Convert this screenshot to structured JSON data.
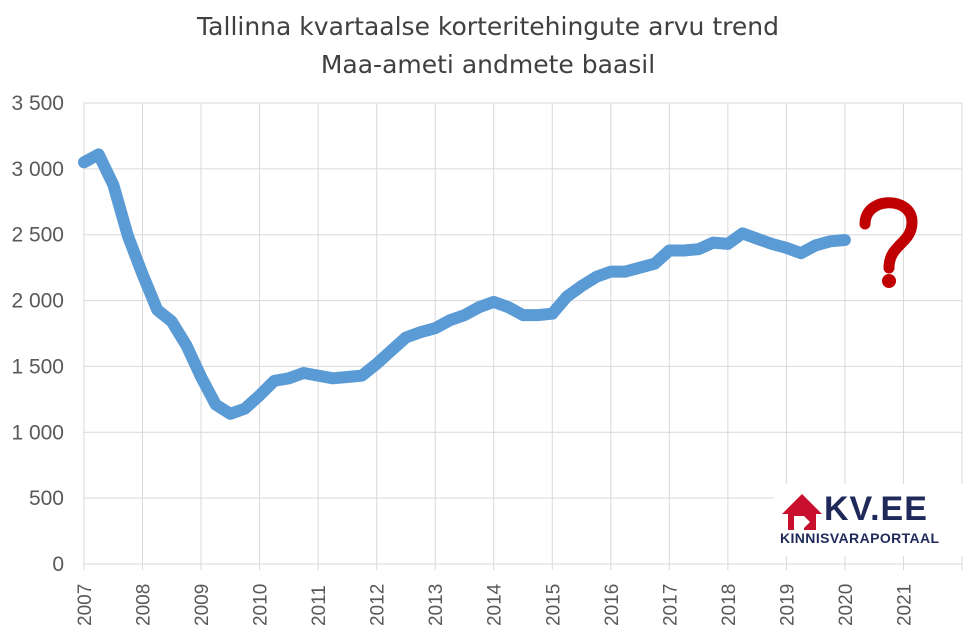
{
  "title": {
    "line1": "Tallinna kvartaalse korteritehingute arvu trend",
    "line2": "Maa-ameti andmete baasil"
  },
  "logo": {
    "name": "KV.EE",
    "subtitle": "KINNISVARAPORTAAL",
    "color": "#c8102e",
    "text_color": "#1f2a5a"
  },
  "annotation": {
    "symbol": "?",
    "color": "#c00000"
  },
  "colors": {
    "series": "#5b9bd5",
    "grid": "#d9d9d9",
    "axis": "#595959"
  },
  "chart_data": {
    "type": "line",
    "title": "Tallinna kvartaalse korteritehingute arvu trend",
    "subtitle": "Maa-ameti andmete baasil",
    "xlabel": "",
    "ylabel": "",
    "xlim": [
      2007,
      2022
    ],
    "ylim": [
      0,
      3500
    ],
    "yticks": [
      0,
      500,
      1000,
      1500,
      2000,
      2500,
      3000,
      3500
    ],
    "ytick_labels": [
      "0",
      "500",
      "1 000",
      "1 500",
      "2 000",
      "2 500",
      "3 000",
      "3 500"
    ],
    "xtick_labels": [
      "2007",
      "2008",
      "2009",
      "2010",
      "2011",
      "2012",
      "2013",
      "2014",
      "2015",
      "2016",
      "2017",
      "2018",
      "2019",
      "2020",
      "2021"
    ],
    "grid": true,
    "legend": "none",
    "series": [
      {
        "x": [
          2007.0,
          2007.25,
          2007.5,
          2007.75,
          2008.0,
          2008.25,
          2008.5,
          2008.75,
          2009.0,
          2009.25,
          2009.5,
          2009.75,
          2010.0,
          2010.25,
          2010.5,
          2010.75,
          2011.0,
          2011.25,
          2011.5,
          2011.75,
          2012.0,
          2012.25,
          2012.5,
          2012.75,
          2013.0,
          2013.25,
          2013.5,
          2013.75,
          2014.0,
          2014.25,
          2014.5,
          2014.75,
          2015.0,
          2015.25,
          2015.5,
          2015.75,
          2016.0,
          2016.25,
          2016.5,
          2016.75,
          2017.0,
          2017.25,
          2017.5,
          2017.75,
          2018.0,
          2018.25,
          2018.5,
          2018.75,
          2019.0,
          2019.25,
          2019.5,
          2019.75,
          2020.0
        ],
        "values": [
          3050,
          3110,
          2880,
          2490,
          2200,
          1930,
          1840,
          1660,
          1420,
          1210,
          1140,
          1180,
          1280,
          1390,
          1410,
          1450,
          1430,
          1410,
          1420,
          1430,
          1520,
          1620,
          1720,
          1760,
          1790,
          1850,
          1890,
          1950,
          1990,
          1950,
          1890,
          1890,
          1900,
          2030,
          2110,
          2180,
          2220,
          2220,
          2250,
          2280,
          2380,
          2380,
          2390,
          2440,
          2430,
          2510,
          2470,
          2430,
          2400,
          2360,
          2420,
          2450,
          2460
        ]
      }
    ]
  }
}
